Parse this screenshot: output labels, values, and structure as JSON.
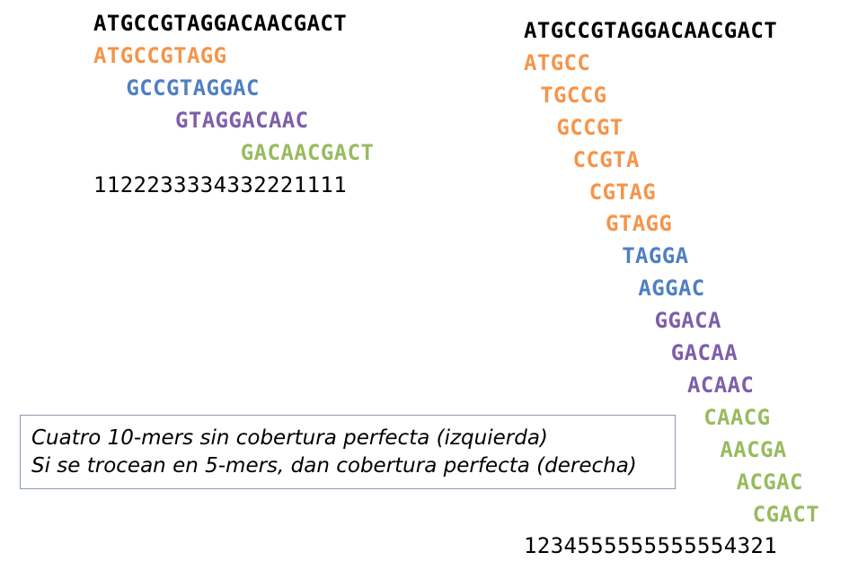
{
  "colors": {
    "reference": "#000000",
    "orange": "#f5944a",
    "blue": "#4f7fc2",
    "purple": "#7e5ea8",
    "green": "#98bb5e"
  },
  "left": {
    "reference": "ATGCCGTAGGACAACGACT",
    "kmers": [
      {
        "seq": "ATGCCGTAGG",
        "offset": 0,
        "color": "orange"
      },
      {
        "seq": "GCCGTAGGAC",
        "offset": 2,
        "color": "blue"
      },
      {
        "seq": "GTAGGACAAC",
        "offset": 5,
        "color": "purple"
      },
      {
        "seq": "GACAACGACT",
        "offset": 9,
        "color": "green"
      }
    ],
    "coverage": "1122233334332221111"
  },
  "right": {
    "reference": "ATGCCGTAGGACAACGACT",
    "kmers": [
      {
        "seq": "ATGCC",
        "offset": 0,
        "color": "orange"
      },
      {
        "seq": "TGCCG",
        "offset": 1,
        "color": "orange"
      },
      {
        "seq": "GCCGT",
        "offset": 2,
        "color": "orange"
      },
      {
        "seq": "CCGTA",
        "offset": 3,
        "color": "orange"
      },
      {
        "seq": "CGTAG",
        "offset": 4,
        "color": "orange"
      },
      {
        "seq": "GTAGG",
        "offset": 5,
        "color": "orange"
      },
      {
        "seq": "TAGGA",
        "offset": 6,
        "color": "blue"
      },
      {
        "seq": "AGGAC",
        "offset": 7,
        "color": "blue"
      },
      {
        "seq": "GGACA",
        "offset": 8,
        "color": "purple"
      },
      {
        "seq": "GACAA",
        "offset": 9,
        "color": "purple"
      },
      {
        "seq": "ACAAC",
        "offset": 10,
        "color": "purple"
      },
      {
        "seq": "CAACG",
        "offset": 11,
        "color": "green"
      },
      {
        "seq": "AACGA",
        "offset": 12,
        "color": "green"
      },
      {
        "seq": "ACGAC",
        "offset": 13,
        "color": "green"
      },
      {
        "seq": "CGACT",
        "offset": 14,
        "color": "green"
      }
    ],
    "coverage": "1234555555555554321"
  },
  "caption": {
    "line1": "Cuatro 10-mers sin cobertura perfecta (izquierda)",
    "line2": "Si se trocean en 5-mers, dan cobertura perfecta (derecha)"
  }
}
